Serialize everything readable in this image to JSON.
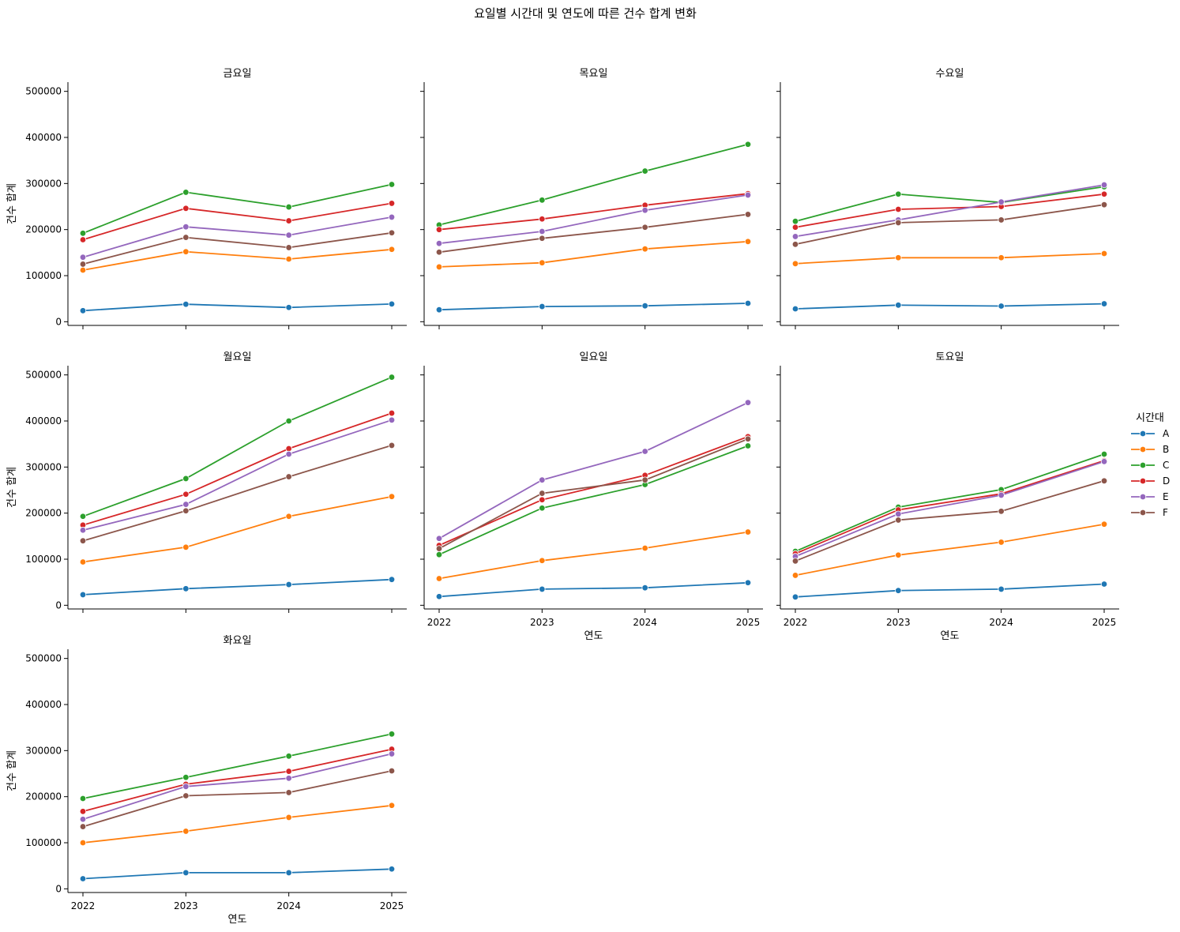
{
  "chart_data": {
    "type": "line",
    "title": "요일별 시간대 및 연도에 따른 건수 합계 변화",
    "xlabel": "연도",
    "ylabel": "건수 합계",
    "x": [
      2022,
      2023,
      2024,
      2025
    ],
    "ylim": [
      -8000,
      520000
    ],
    "yticks": [
      0,
      100000,
      200000,
      300000,
      400000,
      500000
    ],
    "legend": {
      "title": "시간대",
      "placement": "right",
      "entries": [
        "A",
        "B",
        "C",
        "D",
        "E",
        "F"
      ]
    },
    "colors": {
      "A": "#1f77b4",
      "B": "#ff7f0e",
      "C": "#2ca02c",
      "D": "#d62728",
      "E": "#9467bd",
      "F": "#8c564b"
    },
    "grid": false,
    "panels": [
      {
        "title": "금요일",
        "series": [
          {
            "name": "A",
            "values": [
              24000,
              38000,
              31000,
              38500
            ]
          },
          {
            "name": "B",
            "values": [
              112000,
              152000,
              136000,
              157000
            ]
          },
          {
            "name": "C",
            "values": [
              192000,
              281000,
              249000,
              298000
            ]
          },
          {
            "name": "D",
            "values": [
              178000,
              246000,
              219000,
              257000
            ]
          },
          {
            "name": "E",
            "values": [
              140000,
              206000,
              188000,
              227000
            ]
          },
          {
            "name": "F",
            "values": [
              125000,
              183000,
              161000,
              193000
            ]
          }
        ]
      },
      {
        "title": "목요일",
        "series": [
          {
            "name": "A",
            "values": [
              26000,
              33000,
              34500,
              40000
            ]
          },
          {
            "name": "B",
            "values": [
              119000,
              128000,
              158000,
              174000
            ]
          },
          {
            "name": "C",
            "values": [
              210000,
              264000,
              327000,
              385000
            ]
          },
          {
            "name": "D",
            "values": [
              200000,
              223000,
              253000,
              278000
            ]
          },
          {
            "name": "E",
            "values": [
              170000,
              196000,
              242000,
              275000
            ]
          },
          {
            "name": "F",
            "values": [
              151000,
              181000,
              205000,
              233000
            ]
          }
        ]
      },
      {
        "title": "수요일",
        "series": [
          {
            "name": "A",
            "values": [
              28000,
              36000,
              34000,
              39000
            ]
          },
          {
            "name": "B",
            "values": [
              126000,
              139000,
              139000,
              148000
            ]
          },
          {
            "name": "C",
            "values": [
              218000,
              277000,
              259000,
              293000
            ]
          },
          {
            "name": "D",
            "values": [
              205000,
              244000,
              250000,
              277000
            ]
          },
          {
            "name": "E",
            "values": [
              185000,
              221000,
              260000,
              297000
            ]
          },
          {
            "name": "F",
            "values": [
              168000,
              215000,
              221000,
              254000
            ]
          }
        ]
      },
      {
        "title": "월요일",
        "series": [
          {
            "name": "A",
            "values": [
              23000,
              36000,
              45000,
              56000
            ]
          },
          {
            "name": "B",
            "values": [
              94000,
              126000,
              193000,
              236000
            ]
          },
          {
            "name": "C",
            "values": [
              193000,
              275000,
              400000,
              495000
            ]
          },
          {
            "name": "D",
            "values": [
              174000,
              241000,
              340000,
              417000
            ]
          },
          {
            "name": "E",
            "values": [
              163000,
              219000,
              328000,
              402000
            ]
          },
          {
            "name": "F",
            "values": [
              140000,
              205000,
              279000,
              347000
            ]
          }
        ]
      },
      {
        "title": "일요일",
        "series": [
          {
            "name": "A",
            "values": [
              19000,
              35000,
              38000,
              49000
            ]
          },
          {
            "name": "B",
            "values": [
              58000,
              97000,
              124000,
              159000
            ]
          },
          {
            "name": "C",
            "values": [
              110000,
              211000,
              262000,
              346000
            ]
          },
          {
            "name": "D",
            "values": [
              130000,
              229000,
              282000,
              366000
            ]
          },
          {
            "name": "E",
            "values": [
              145000,
              272000,
              334000,
              440000
            ]
          },
          {
            "name": "F",
            "values": [
              123000,
              243000,
              272000,
              361000
            ]
          }
        ]
      },
      {
        "title": "토요일",
        "series": [
          {
            "name": "A",
            "values": [
              18000,
              32000,
              35000,
              46000
            ]
          },
          {
            "name": "B",
            "values": [
              65000,
              109000,
              137000,
              176000
            ]
          },
          {
            "name": "C",
            "values": [
              117000,
              213000,
              251000,
              328000
            ]
          },
          {
            "name": "D",
            "values": [
              112000,
              207000,
              242000,
              314000
            ]
          },
          {
            "name": "E",
            "values": [
              106000,
              198000,
              239000,
              312000
            ]
          },
          {
            "name": "F",
            "values": [
              96000,
              185000,
              204000,
              270000
            ]
          }
        ]
      },
      {
        "title": "화요일",
        "series": [
          {
            "name": "A",
            "values": [
              22000,
              35000,
              35000,
              43000
            ]
          },
          {
            "name": "B",
            "values": [
              100000,
              125000,
              155000,
              181000
            ]
          },
          {
            "name": "C",
            "values": [
              196000,
              242000,
              288000,
              336000
            ]
          },
          {
            "name": "D",
            "values": [
              168000,
              227000,
              255000,
              303000
            ]
          },
          {
            "name": "E",
            "values": [
              151000,
              222000,
              240000,
              293000
            ]
          },
          {
            "name": "F",
            "values": [
              135000,
              202000,
              209000,
              256000
            ]
          }
        ]
      }
    ]
  }
}
